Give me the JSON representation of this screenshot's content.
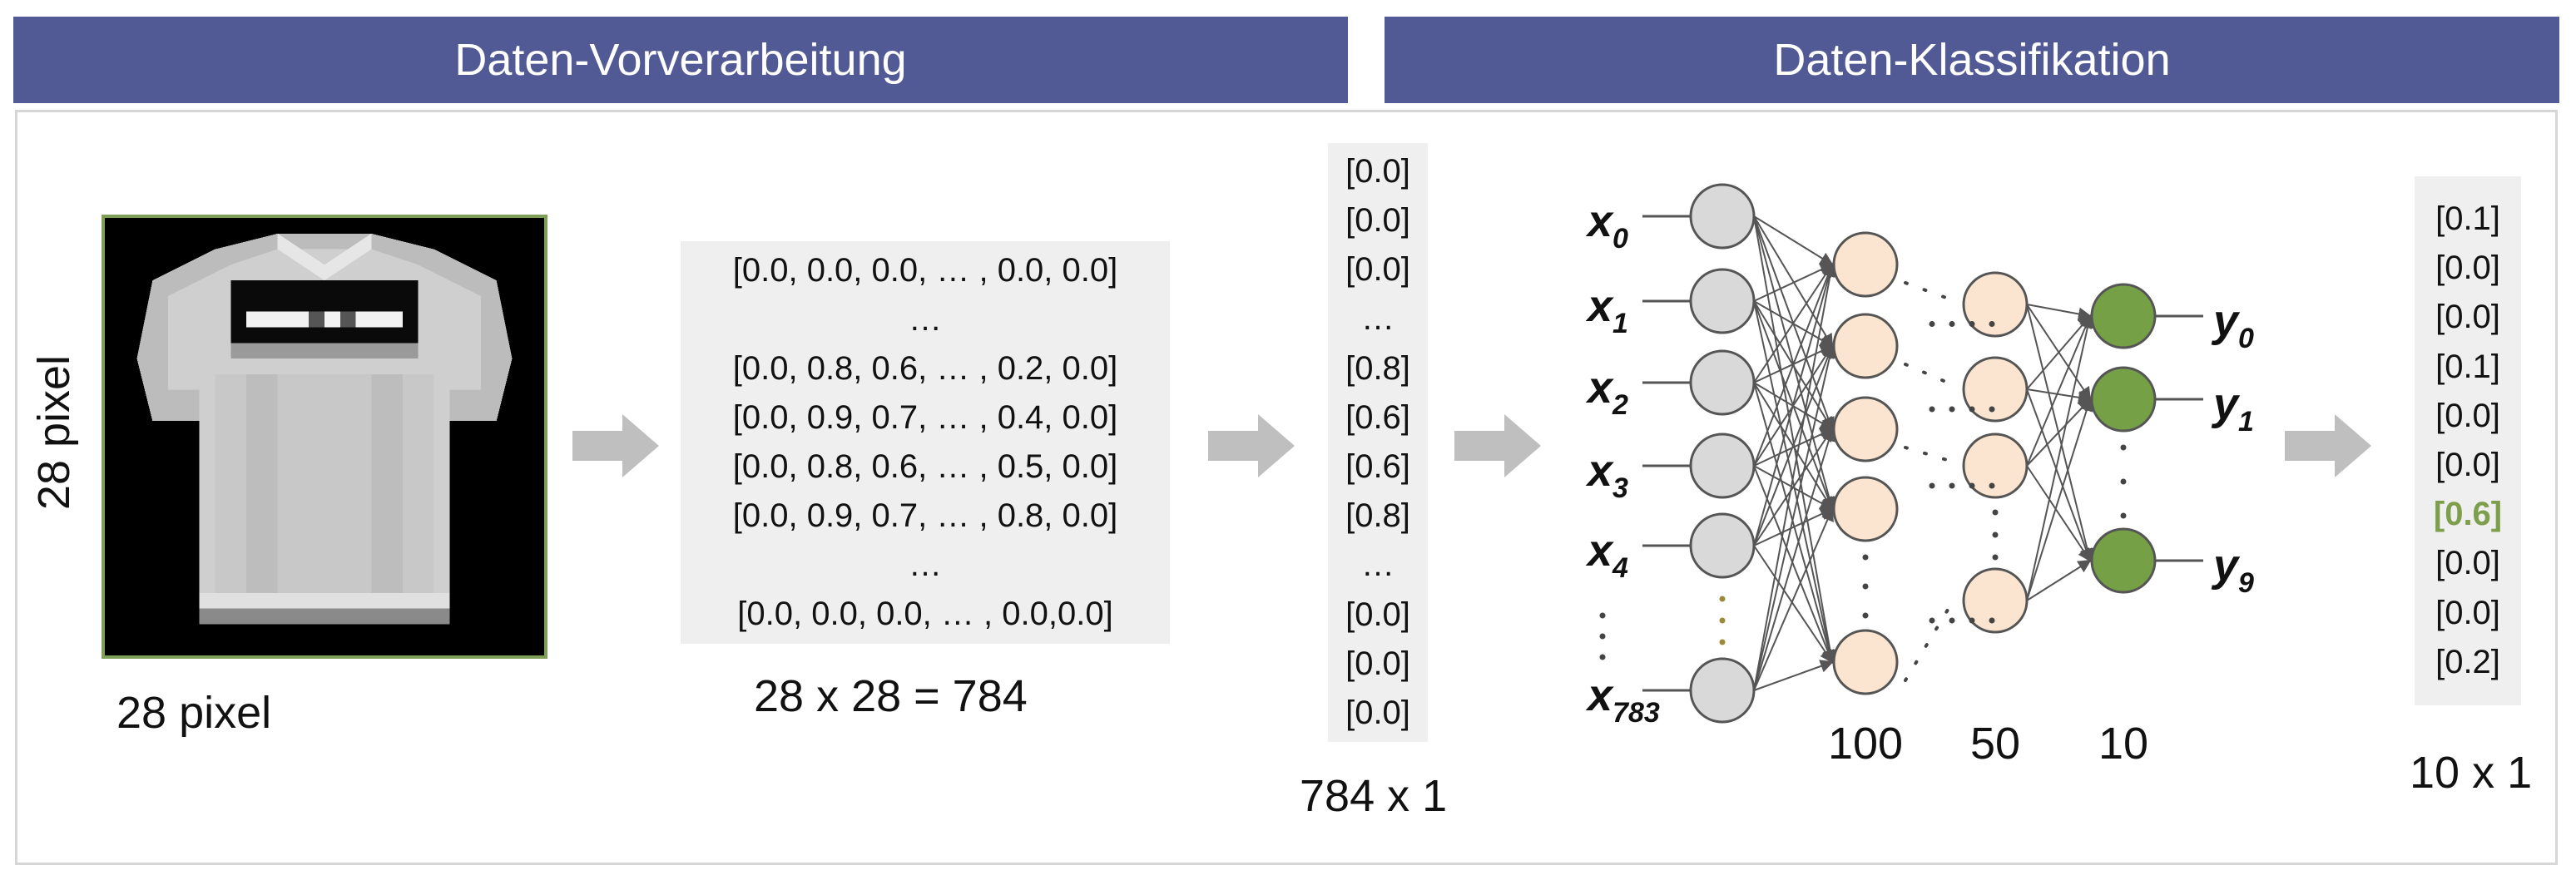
{
  "header": {
    "left_title": "Daten-Vorverarbeitung",
    "right_title": "Daten-Klassifikation",
    "color": "#525a96"
  },
  "image": {
    "width_label": "28 pixel",
    "height_label": "28 pixel",
    "border_color": "#7f9e58"
  },
  "matrix": {
    "rows": [
      "[0.0, 0.0, 0.0, … , 0.0, 0.0]",
      "…",
      "[0.0, 0.8, 0.6, … , 0.2, 0.0]",
      "[0.0, 0.9, 0.7, … , 0.4, 0.0]",
      "[0.0, 0.8, 0.6, … , 0.5, 0.0]",
      "[0.0, 0.9, 0.7, … , 0.8, 0.0]",
      "…",
      "[0.0, 0.0, 0.0, … , 0.0,0.0]"
    ],
    "size_label": "28 x 28 = 784"
  },
  "vector": {
    "rows": [
      "[0.0]",
      "[0.0]",
      "[0.0]",
      "…",
      "[0.8]",
      "[0.6]",
      "[0.6]",
      "[0.8]",
      "…",
      "[0.0]",
      "[0.0]",
      "[0.0]"
    ],
    "size_label": "784 x 1"
  },
  "network": {
    "inputs": [
      {
        "base": "x",
        "sub": "0"
      },
      {
        "base": "x",
        "sub": "1"
      },
      {
        "base": "x",
        "sub": "2"
      },
      {
        "base": "x",
        "sub": "3"
      },
      {
        "base": "x",
        "sub": "4"
      },
      {
        "base": "x",
        "sub": "783"
      }
    ],
    "outputs": [
      {
        "base": "y",
        "sub": "0"
      },
      {
        "base": "y",
        "sub": "1"
      },
      {
        "base": "y",
        "sub": "9"
      }
    ],
    "layer_sizes": [
      "100",
      "50",
      "10"
    ],
    "colors": {
      "input": "#d9d9d9",
      "hidden": "#fbe5d0",
      "output": "#76a045",
      "edge": "#555555"
    }
  },
  "output": {
    "rows": [
      "[0.1]",
      "[0.0]",
      "[0.0]",
      "[0.1]",
      "[0.0]",
      "[0.0]",
      "[0.6]",
      "[0.0]",
      "[0.0]",
      "[0.2]"
    ],
    "highlight_index": 6,
    "highlight_color": "#7d9e4b",
    "size_label": "10 x 1"
  },
  "arrow_color": "#bfbfbf"
}
